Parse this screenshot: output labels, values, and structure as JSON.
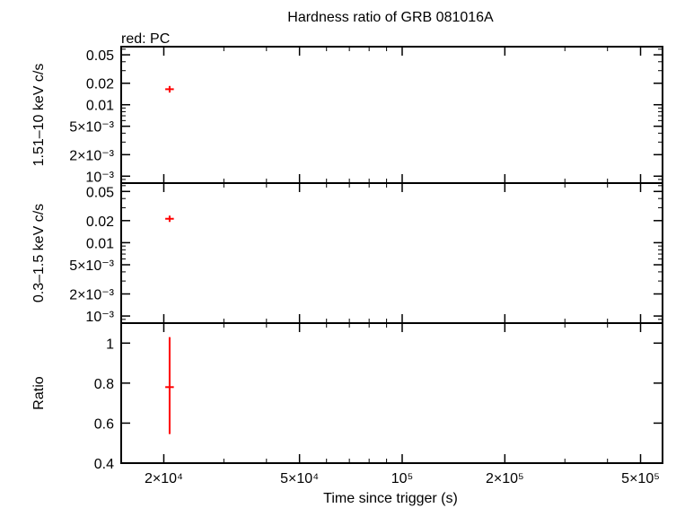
{
  "chart_data": [
    {
      "panel": "top",
      "type": "scatter",
      "title": "Hardness ratio of GRB 081016A",
      "subtitle": "red: PC",
      "ylabel": "1.51–10 keV c/s",
      "yscale": "log",
      "ylim": [
        0.0008,
        0.065
      ],
      "yticks": [
        {
          "value": 0.05,
          "label": "0.05"
        },
        {
          "value": 0.02,
          "label": "0.02"
        },
        {
          "value": 0.01,
          "label": "0.01"
        },
        {
          "value": 0.005,
          "label": "5×10⁻³"
        },
        {
          "value": 0.002,
          "label": "2×10⁻³"
        },
        {
          "value": 0.001,
          "label": "10⁻³"
        }
      ],
      "series": [
        {
          "color": "#ff0000",
          "points": [
            {
              "x": 20800,
              "y": 0.0165,
              "xerr": [
                20200,
                21400
              ],
              "yerr": [
                0.0148,
                0.0183
              ]
            }
          ]
        }
      ]
    },
    {
      "panel": "middle",
      "type": "scatter",
      "ylabel": "0.3–1.5 keV c/s",
      "yscale": "log",
      "ylim": [
        0.0008,
        0.065
      ],
      "yticks": [
        {
          "value": 0.05,
          "label": "0.05"
        },
        {
          "value": 0.02,
          "label": "0.02"
        },
        {
          "value": 0.01,
          "label": "0.01"
        },
        {
          "value": 0.005,
          "label": "5×10⁻³"
        },
        {
          "value": 0.002,
          "label": "2×10⁻³"
        },
        {
          "value": 0.001,
          "label": "10⁻³"
        }
      ],
      "series": [
        {
          "color": "#ff0000",
          "points": [
            {
              "x": 20800,
              "y": 0.0212,
              "xerr": [
                20200,
                21400
              ],
              "yerr": [
                0.0192,
                0.0234
              ]
            }
          ]
        }
      ]
    },
    {
      "panel": "bottom",
      "type": "scatter",
      "ylabel": "Ratio",
      "xlabel": "Time since trigger (s)",
      "yscale": "linear",
      "ylim": [
        0.4,
        1.1
      ],
      "yticks": [
        {
          "value": 1,
          "label": "1"
        },
        {
          "value": 0.8,
          "label": "0.8"
        },
        {
          "value": 0.6,
          "label": "0.6"
        },
        {
          "value": 0.4,
          "label": "0.4"
        }
      ],
      "xscale": "log",
      "xlim": [
        15000,
        580000
      ],
      "xticks": [
        {
          "value": 20000,
          "label": "2×10⁴"
        },
        {
          "value": 50000,
          "label": "5×10⁴"
        },
        {
          "value": 100000,
          "label": "10⁵"
        },
        {
          "value": 200000,
          "label": "2×10⁵"
        },
        {
          "value": 500000,
          "label": "5×10⁵"
        }
      ],
      "series": [
        {
          "color": "#ff0000",
          "points": [
            {
              "x": 20800,
              "y": 0.78,
              "xerr": [
                20200,
                21400
              ],
              "yerr": [
                0.545,
                1.03
              ]
            }
          ]
        }
      ]
    }
  ]
}
